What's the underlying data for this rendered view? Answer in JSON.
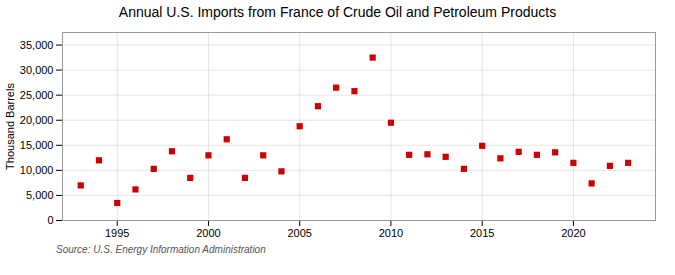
{
  "chart_data": {
    "type": "scatter",
    "title": "Annual U.S. Imports from France of Crude Oil and Petroleum Products",
    "ylabel": "Thousand Barrels",
    "source": "Source: U.S. Energy Information Administration",
    "x": [
      1993,
      1994,
      1995,
      1996,
      1997,
      1998,
      1999,
      2000,
      2001,
      2002,
      2003,
      2004,
      2005,
      2006,
      2007,
      2008,
      2009,
      2010,
      2011,
      2012,
      2013,
      2014,
      2015,
      2016,
      2017,
      2018,
      2019,
      2020,
      2021,
      2022,
      2023
    ],
    "values": [
      7000,
      12000,
      3500,
      6200,
      10300,
      13800,
      8500,
      13000,
      16200,
      8500,
      13000,
      9800,
      18800,
      22800,
      26500,
      25800,
      32500,
      19500,
      13100,
      13200,
      12700,
      10300,
      14900,
      12400,
      13700,
      13100,
      13600,
      11500,
      7400,
      10900,
      11500
    ],
    "color": "#cc0000",
    "marker": "square",
    "grid": true,
    "xlim": [
      1992,
      2024.5
    ],
    "xticks": [
      1995,
      2000,
      2005,
      2010,
      2015,
      2020
    ],
    "ylim": [
      0,
      37500
    ],
    "yticks": [
      0,
      {
        "value": 5000,
        "label": "5,000"
      },
      {
        "value": 10000,
        "label": "10,000"
      },
      {
        "value": 15000,
        "label": "15,000"
      },
      {
        "value": 20000,
        "label": "20,000"
      },
      {
        "value": 25000,
        "label": "25,000"
      },
      {
        "value": 30000,
        "label": "30,000"
      },
      {
        "value": 35000,
        "label": "35,000"
      }
    ]
  }
}
